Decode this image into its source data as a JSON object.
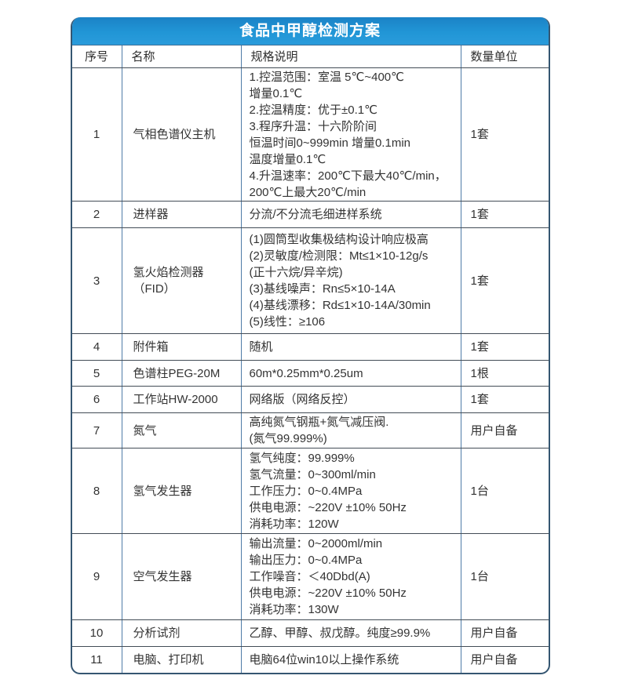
{
  "title": "食品中甲醇检测方案",
  "colors": {
    "header_blue": "#2196d6",
    "outer_border": "#355671",
    "horizontal_border": "#424c56",
    "vertical_border": "#4f7ca7",
    "title_text": "#ffffff",
    "body_text": "#333333"
  },
  "table": {
    "headers": [
      "序号",
      "名称",
      "规格说明",
      "数量单位"
    ],
    "rows": [
      {
        "no": "1",
        "name": "气相色谱仪主机",
        "spec": "1.控温范围：室温 5℃~400℃\n增量0.1℃\n2.控温精度：优于±0.1℃\n3.程序升温：十六阶阶间\n恒温时间0~999min 增量0.1min\n温度增量0.1℃\n4.升温速率：200℃下最大40℃/min，\n200℃上最大20℃/min",
        "qty": "1套"
      },
      {
        "no": "2",
        "name": "进样器",
        "spec": "分流/不分流毛细进样系统",
        "qty": "1套"
      },
      {
        "no": "3",
        "name": "氢火焰检测器（FID）",
        "spec": "(1)圆筒型收集极结构设计响应极高\n(2)灵敏度/检测限：Mt≤1×10-12g/s\n(正十六烷/异辛烷)\n(3)基线噪声：Rn≤5×10-14A\n(4)基线漂移：Rd≤1×10-14A/30min\n(5)线性：≥106",
        "qty": "1套"
      },
      {
        "no": "4",
        "name": "附件箱",
        "spec": "随机",
        "qty": "1套"
      },
      {
        "no": "5",
        "name": "色谱柱PEG-20M",
        "spec": "60m*0.25mm*0.25um",
        "qty": "1根"
      },
      {
        "no": "6",
        "name": "工作站HW-2000",
        "spec": "网络版（网络反控）",
        "qty": "1套"
      },
      {
        "no": "7",
        "name": "氮气",
        "spec": "高纯氮气钢瓶+氮气减压阀.\n(氮气99.999%)",
        "qty": "用户自备"
      },
      {
        "no": "8",
        "name": "氢气发生器",
        "spec": "氢气纯度：99.999%\n氢气流量：0~300ml/min\n工作压力：0~0.4MPa\n供电电源：~220V ±10% 50Hz\n消耗功率：120W",
        "qty": "1台"
      },
      {
        "no": "9",
        "name": "空气发生器",
        "spec": "输出流量：0~2000ml/min\n输出压力：0~0.4MPa\n工作噪音：＜40Dbd(A)\n供电电源：~220V ±10% 50Hz\n消耗功率：130W",
        "qty": "1台"
      },
      {
        "no": "10",
        "name": "分析试剂",
        "spec": "乙醇、甲醇、叔戊醇。纯度≥99.9%",
        "qty": "用户自备"
      },
      {
        "no": "11",
        "name": "电脑、打印机",
        "spec": "电脑64位win10以上操作系统",
        "qty": "用户自备"
      }
    ]
  }
}
